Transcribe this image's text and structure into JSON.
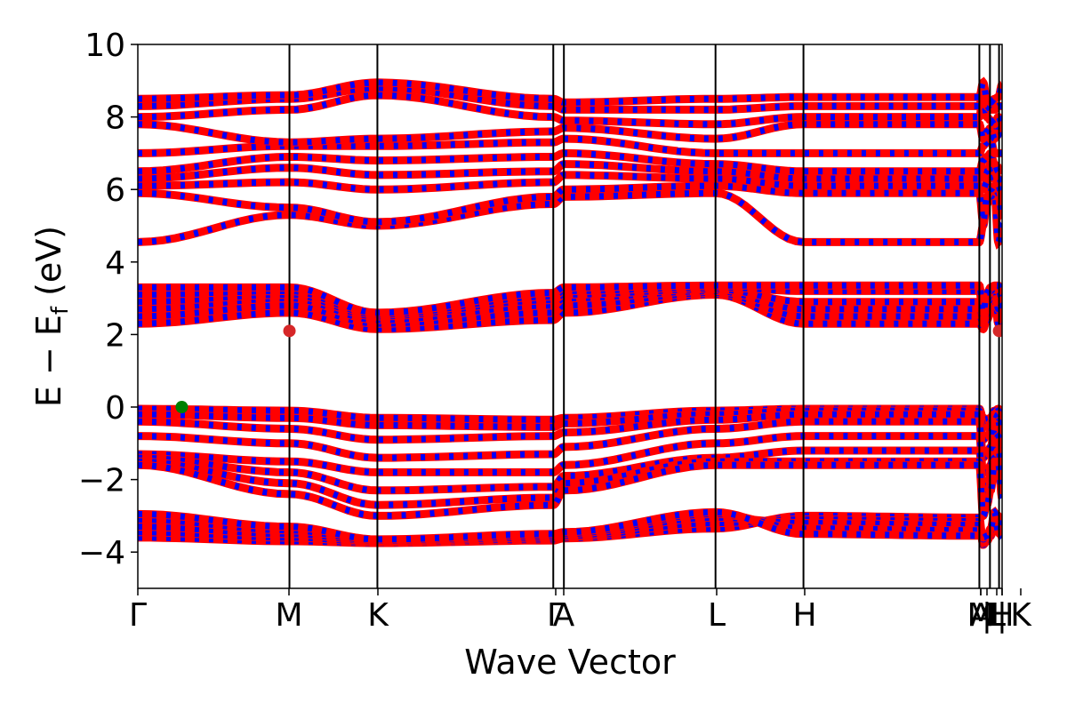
{
  "chart_data": {
    "type": "line",
    "xlabel": "Wave Vector",
    "ylabel_main": "E − E",
    "ylabel_sub": "f",
    "ylabel_unit": " (eV)",
    "ylim": [
      -5,
      10
    ],
    "yticks": [
      {
        "value": 10,
        "label": "10"
      },
      {
        "value": 8,
        "label": "8"
      },
      {
        "value": 6,
        "label": "6"
      },
      {
        "value": 4,
        "label": "4"
      },
      {
        "value": 2,
        "label": "2"
      },
      {
        "value": 0,
        "label": "0"
      },
      {
        "value": -2,
        "label": "−2"
      },
      {
        "value": -4,
        "label": "−4"
      }
    ],
    "kpoints": [
      {
        "label": "Γ",
        "x": 0
      },
      {
        "label": "M",
        "x": 1.0
      },
      {
        "label": "K",
        "x": 1.58
      },
      {
        "label": "Γ",
        "x": 2.74
      },
      {
        "label": "A",
        "x": 2.81
      },
      {
        "label": "L",
        "x": 3.81
      },
      {
        "label": "H",
        "x": 4.39
      },
      {
        "label": "A",
        "x": 5.55
      },
      {
        "label": "M",
        "x": 5.55
      },
      {
        "label": "|",
        "x": 5.59
      },
      {
        "label": "L",
        "x": 5.62
      },
      {
        "label": "|",
        "x": 5.64
      },
      {
        "label": "H",
        "x": 5.64
      },
      {
        "label": "K",
        "x": 5.7
      }
    ],
    "vlines_x": [
      1.0,
      1.58,
      2.74,
      2.81,
      3.81,
      4.39,
      5.55,
      5.62,
      5.68
    ],
    "xlim": [
      0,
      5.7
    ],
    "colors": {
      "band_fill": "#ff0000",
      "band_stripe": "#0000ff",
      "vbm_marker": "#008000",
      "cbm_marker": "#d62728"
    },
    "markers": [
      {
        "name": "vbm",
        "x": 0.29,
        "y": 0.0
      },
      {
        "name": "cbm",
        "x": 1.0,
        "y": 2.1
      },
      {
        "name": "cbm",
        "x": 5.68,
        "y": 2.1
      }
    ],
    "bands": [
      {
        "group": "core",
        "lines": [
          {
            "y": [
              -3.6,
              -3.7,
              -3.75,
              -3.68,
              -3.62,
              -3.35,
              -3.0,
              -3.05,
              -3.8,
              -3.7,
              -3.55,
              -3.3,
              -3.0,
              -3.6
            ]
          },
          {
            "y": [
              -3.45,
              -3.6,
              -3.72,
              -3.65,
              -3.58,
              -3.2,
              -3.1,
              -3.15,
              -3.75,
              -3.66,
              -3.5,
              -3.2,
              -3.1,
              -3.5
            ]
          },
          {
            "y": [
              -3.3,
              -3.5,
              -3.7,
              -3.6,
              -3.55,
              -3.05,
              -3.2,
              -3.25,
              -3.7,
              -3.62,
              -3.45,
              -3.1,
              -3.2,
              -3.4
            ]
          },
          {
            "y": [
              -3.1,
              -3.4,
              -3.68,
              -3.55,
              -3.5,
              -2.95,
              -3.35,
              -3.4,
              -3.65,
              -3.58,
              -3.4,
              -3.0,
              -3.3,
              -3.3
            ]
          },
          {
            "y": [
              -2.95,
              -3.3,
              -3.65,
              -3.5,
              -3.45,
              -2.9,
              -3.5,
              -3.55,
              -3.6,
              -3.55,
              -3.35,
              -2.9,
              -3.45,
              -3.2
            ]
          }
        ]
      },
      {
        "group": "valence",
        "lines": [
          {
            "y": [
              -0.05,
              -0.1,
              -0.3,
              -0.35,
              -0.3,
              -0.1,
              -0.05,
              -0.05,
              -0.3,
              -0.35,
              -0.3,
              -0.1,
              -0.05,
              -0.2
            ]
          },
          {
            "y": [
              -0.2,
              -0.3,
              -0.5,
              -0.55,
              -0.45,
              -0.2,
              -0.1,
              -0.1,
              -0.5,
              -0.55,
              -0.45,
              -0.2,
              -0.1,
              -0.4
            ]
          },
          {
            "y": [
              -0.4,
              -0.6,
              -0.9,
              -0.8,
              -0.7,
              -0.35,
              -0.2,
              -0.2,
              -0.9,
              -0.8,
              -0.7,
              -0.35,
              -0.2,
              -0.7
            ]
          },
          {
            "y": [
              -0.8,
              -1.0,
              -1.4,
              -1.3,
              -1.1,
              -0.6,
              -0.4,
              -0.4,
              -1.4,
              -1.3,
              -1.1,
              -0.6,
              -0.4,
              -1.0
            ]
          },
          {
            "y": [
              -1.3,
              -1.5,
              -1.8,
              -1.8,
              -1.6,
              -1.0,
              -0.8,
              -0.8,
              -1.8,
              -1.8,
              -1.6,
              -1.0,
              -0.8,
              -1.4
            ]
          },
          {
            "y": [
              -1.4,
              -1.8,
              -2.3,
              -2.2,
              -1.9,
              -1.4,
              -1.2,
              -1.2,
              -2.3,
              -2.2,
              -1.9,
              -1.4,
              -1.2,
              -1.8
            ]
          },
          {
            "y": [
              -1.5,
              -2.1,
              -2.7,
              -2.5,
              -2.1,
              -1.5,
              -1.5,
              -1.5,
              -2.7,
              -2.5,
              -2.1,
              -1.5,
              -1.5,
              -2.2
            ]
          },
          {
            "y": [
              -1.6,
              -2.4,
              -3.0,
              -2.7,
              -2.3,
              -1.6,
              -1.6,
              -1.6,
              -3.0,
              -2.7,
              -2.3,
              -1.6,
              -1.6,
              -2.5
            ]
          }
        ]
      },
      {
        "group": "conduction1",
        "lines": [
          {
            "y": [
              2.3,
              2.6,
              2.15,
              2.4,
              2.6,
              3.1,
              2.3,
              2.3,
              2.15,
              2.4,
              2.6,
              3.1,
              2.3,
              2.2
            ]
          },
          {
            "y": [
              2.5,
              2.8,
              2.3,
              2.6,
              2.8,
              3.15,
              2.5,
              2.5,
              2.3,
              2.6,
              2.8,
              3.15,
              2.5,
              2.4
            ]
          },
          {
            "y": [
              2.7,
              3.0,
              2.4,
              2.8,
              3.0,
              3.2,
              2.7,
              2.7,
              2.4,
              2.8,
              3.0,
              3.2,
              2.7,
              2.6
            ]
          },
          {
            "y": [
              2.9,
              3.1,
              2.5,
              2.95,
              3.1,
              3.25,
              2.9,
              2.9,
              2.5,
              2.95,
              3.1,
              3.25,
              2.9,
              2.8
            ]
          },
          {
            "y": [
              3.1,
              3.2,
              2.55,
              3.05,
              3.2,
              3.3,
              3.2,
              3.2,
              2.55,
              3.05,
              3.2,
              3.3,
              3.2,
              3.0
            ]
          },
          {
            "y": [
              3.3,
              3.3,
              2.6,
              3.15,
              3.3,
              3.35,
              3.35,
              3.35,
              2.6,
              3.15,
              3.3,
              3.35,
              3.35,
              3.2
            ]
          }
        ]
      },
      {
        "group": "conduction2",
        "lines": [
          {
            "y": [
              4.55,
              5.3,
              5.0,
              5.6,
              5.8,
              5.9,
              4.55,
              4.55,
              5.0,
              5.6,
              5.8,
              5.9,
              4.55,
              5.05
            ]
          },
          {
            "y": [
              5.9,
              5.5,
              5.1,
              5.8,
              6.0,
              6.1,
              5.9,
              5.9,
              5.1,
              5.8,
              6.0,
              6.1,
              5.9,
              5.2
            ]
          },
          {
            "y": [
              6.1,
              6.2,
              6.0,
              6.2,
              6.4,
              6.3,
              6.1,
              6.1,
              6.0,
              6.2,
              6.4,
              6.3,
              6.1,
              5.8
            ]
          },
          {
            "y": [
              6.3,
              6.6,
              6.4,
              6.5,
              6.7,
              6.5,
              6.3,
              6.3,
              6.4,
              6.5,
              6.7,
              6.5,
              6.3,
              6.2
            ]
          },
          {
            "y": [
              6.5,
              6.9,
              6.8,
              6.9,
              7.0,
              6.7,
              6.5,
              6.5,
              6.8,
              6.9,
              7.0,
              6.7,
              6.5,
              6.6
            ]
          },
          {
            "y": [
              7.0,
              7.2,
              7.2,
              7.3,
              7.4,
              7.0,
              7.0,
              7.0,
              7.2,
              7.3,
              7.4,
              7.0,
              7.0,
              7.0
            ]
          },
          {
            "y": [
              7.8,
              7.3,
              7.4,
              7.6,
              7.7,
              7.4,
              7.8,
              7.8,
              7.4,
              7.6,
              7.7,
              7.4,
              7.8,
              7.5
            ]
          },
          {
            "y": [
              8.0,
              8.2,
              8.6,
              8.0,
              7.9,
              7.8,
              8.0,
              8.0,
              8.6,
              8.0,
              7.9,
              7.8,
              8.0,
              7.8
            ]
          },
          {
            "y": [
              8.3,
              8.5,
              8.8,
              8.3,
              8.2,
              8.2,
              8.3,
              8.3,
              8.8,
              8.3,
              8.2,
              8.2,
              8.3,
              8.3
            ]
          },
          {
            "y": [
              8.5,
              8.6,
              8.95,
              8.5,
              8.4,
              8.5,
              8.55,
              8.55,
              8.95,
              8.5,
              8.4,
              8.5,
              8.55,
              8.9
            ]
          }
        ]
      }
    ]
  }
}
